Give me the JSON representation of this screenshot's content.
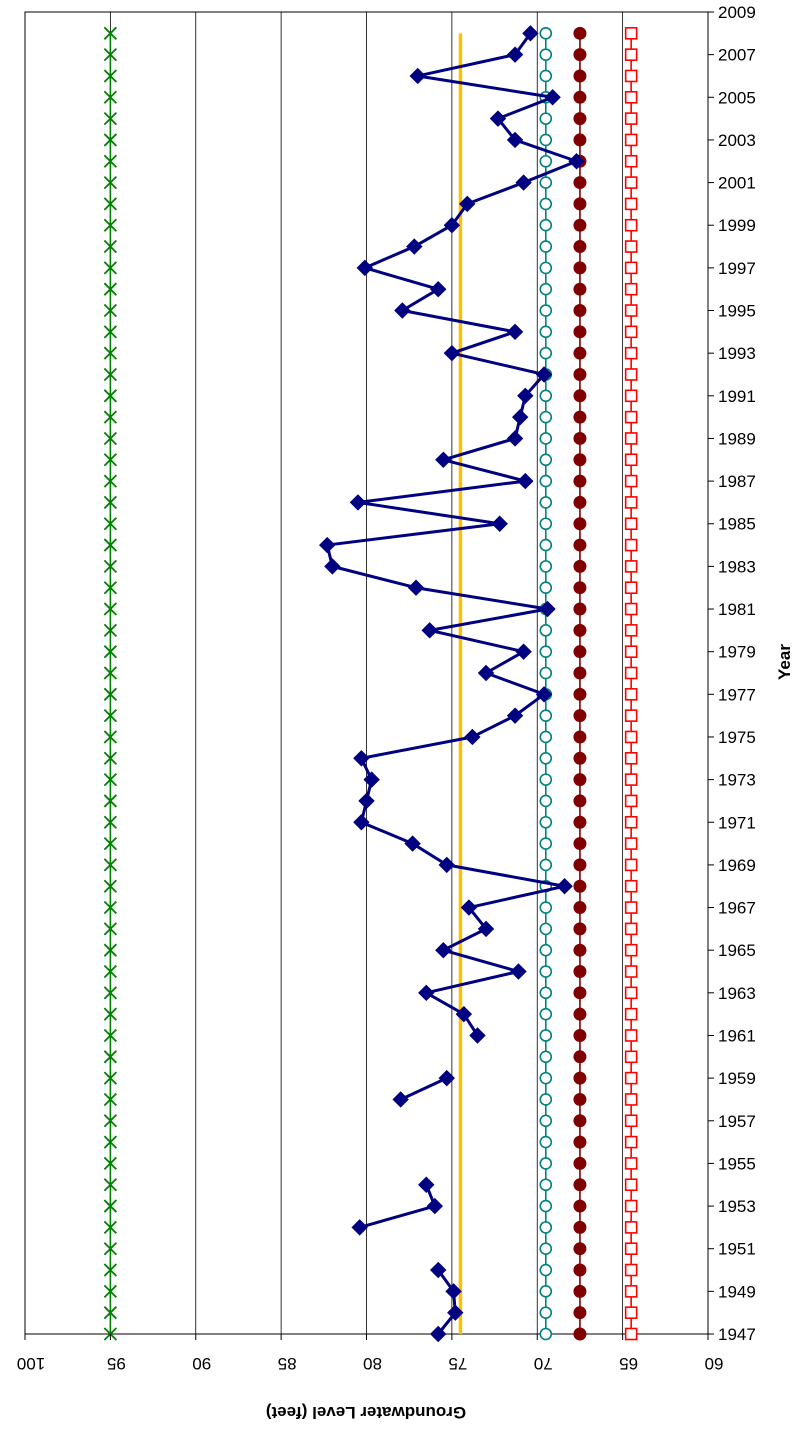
{
  "chart_data": {
    "type": "line",
    "xlabel": "Groundwater Level (feet)",
    "ylabel": "Year",
    "value_axis": {
      "min": 60,
      "max": 100,
      "ticks": [
        100,
        95,
        90,
        85,
        80,
        75,
        70,
        65,
        60
      ],
      "reversed": true,
      "gridlines": true
    },
    "year_axis": {
      "min": 1947,
      "max": 2009,
      "ticks": [
        1947,
        1949,
        1951,
        1953,
        1955,
        1957,
        1959,
        1961,
        1963,
        1965,
        1967,
        1969,
        1971,
        1973,
        1975,
        1977,
        1979,
        1981,
        1983,
        1985,
        1987,
        1989,
        1991,
        1993,
        1995,
        1997,
        1999,
        2001,
        2003,
        2005,
        2007,
        2009
      ],
      "position": "right"
    },
    "measured": {
      "color": "#000080",
      "segments": [
        [
          [
            1947,
            75.8
          ],
          [
            1948,
            74.8
          ],
          [
            1949,
            74.9
          ],
          [
            1950,
            75.8
          ]
        ],
        [
          [
            1952,
            80.4
          ],
          [
            1953,
            76.0
          ],
          [
            1954,
            76.5
          ]
        ],
        [
          [
            1958,
            78.0
          ],
          [
            1959,
            75.3
          ]
        ],
        [
          [
            1961,
            73.5
          ],
          [
            1962,
            74.3
          ],
          [
            1963,
            76.5
          ],
          [
            1964,
            71.1
          ],
          [
            1965,
            75.5
          ],
          [
            1966,
            73.0
          ],
          [
            1967,
            74.0
          ],
          [
            1968,
            68.4
          ],
          [
            1969,
            75.3
          ],
          [
            1970,
            77.3
          ],
          [
            1971,
            80.3
          ],
          [
            1972,
            80.0
          ],
          [
            1973,
            79.7
          ],
          [
            1974,
            80.3
          ],
          [
            1975,
            73.8
          ],
          [
            1976,
            71.3
          ],
          [
            1977,
            69.6
          ],
          [
            1978,
            73.0
          ],
          [
            1979,
            70.8
          ],
          [
            1980,
            76.3
          ],
          [
            1981,
            69.4
          ],
          [
            1982,
            77.1
          ],
          [
            1983,
            82.0
          ],
          [
            1984,
            82.3
          ],
          [
            1985,
            72.2
          ],
          [
            1986,
            80.5
          ],
          [
            1987,
            70.7
          ],
          [
            1988,
            75.5
          ],
          [
            1989,
            71.3
          ],
          [
            1990,
            71.0
          ],
          [
            1991,
            70.7
          ],
          [
            1992,
            69.6
          ],
          [
            1993,
            75.0
          ],
          [
            1994,
            71.3
          ],
          [
            1995,
            77.9
          ],
          [
            1996,
            75.8
          ],
          [
            1997,
            80.1
          ],
          [
            1998,
            77.2
          ],
          [
            1999,
            75.0
          ],
          [
            2000,
            74.1
          ],
          [
            2001,
            70.8
          ],
          [
            2002,
            67.7
          ],
          [
            2003,
            71.3
          ],
          [
            2004,
            72.3
          ],
          [
            2005,
            69.1
          ],
          [
            2006,
            77.0
          ],
          [
            2007,
            71.3
          ],
          [
            2008,
            70.4
          ]
        ]
      ]
    },
    "reference_lines": [
      {
        "value": 95.0,
        "color": "#008000",
        "marker": "x",
        "years": [
          1947,
          2008
        ]
      },
      {
        "value": 74.5,
        "color": "#FFC000",
        "marker": "none",
        "years": [
          1947,
          2008
        ]
      },
      {
        "value": 69.5,
        "color": "#008080",
        "marker": "open-circle",
        "years": [
          1947,
          2008
        ]
      },
      {
        "value": 67.5,
        "color": "#800000",
        "marker": "filled-circle",
        "years": [
          1947,
          2008
        ]
      },
      {
        "value": 64.5,
        "color": "#FF0000",
        "marker": "open-square",
        "years": [
          1947,
          2008
        ]
      }
    ]
  }
}
